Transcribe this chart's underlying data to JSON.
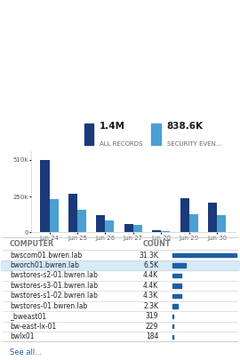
{
  "title_left": "1.4M",
  "title_left_sub": "ALL RECORDS",
  "title_right": "838.6K",
  "title_right_sub": "SECURITY EVEN...",
  "bar_dates": [
    "Jun 24",
    "Jun 25",
    "Jun 26",
    "Jun 27",
    "Jun 28",
    "Jun 29",
    "Jun 30"
  ],
  "bar_dark": [
    510,
    270,
    120,
    60,
    15,
    240,
    210
  ],
  "bar_light": [
    230,
    160,
    80,
    50,
    5,
    125,
    120
  ],
  "dark_color": "#1a3a7a",
  "light_color": "#4a9fd4",
  "table_headers": [
    "COMPUTER",
    "COUNT"
  ],
  "table_rows": [
    [
      "bwscom01.bwren.lab",
      "31.3K",
      1.0
    ],
    [
      "bworch01.bwren.lab",
      "6.5K",
      0.208
    ],
    [
      "bwstores-s2-01.bwren.lab",
      "4.4K",
      0.14
    ],
    [
      "bwstores-s3-01.bwren.lab",
      "4.4K",
      0.14
    ],
    [
      "bwstores-s1-02.bwren.lab",
      "4.3K",
      0.137
    ],
    [
      "bwstores-01.bwren.lab",
      "2.3K",
      0.074
    ],
    [
      "_bweast01",
      "319",
      0.01
    ],
    [
      "bw-east-lx-01",
      "229",
      0.007
    ],
    [
      "bwlx01",
      "184",
      0.006
    ]
  ],
  "highlighted_row": 1,
  "highlight_color": "#d6eaf8",
  "bar_color_table": "#1e5fa8",
  "see_all_text": "See all...",
  "see_all_color": "#1e5fa8",
  "bg_color": "#ffffff",
  "border_color": "#cccccc",
  "header_text_color": "#777777",
  "row_text_color": "#222222"
}
